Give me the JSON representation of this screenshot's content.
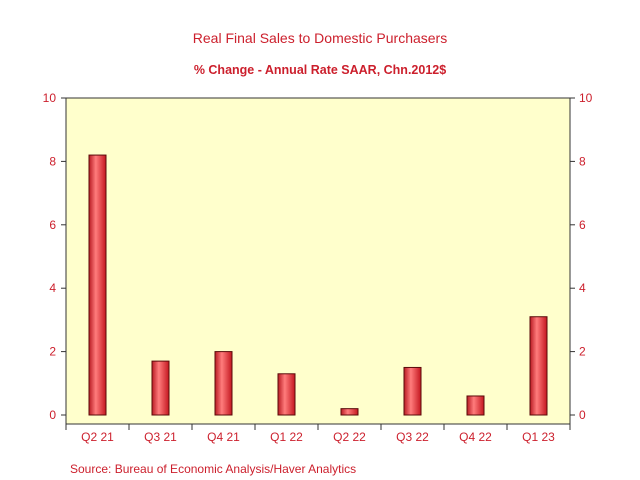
{
  "chart_data": {
    "type": "bar",
    "title": "Real Final Sales to Domestic Purchasers",
    "subtitle": "% Change - Annual Rate     SAAR, Chn.2012$",
    "categories": [
      "Q2 21",
      "Q3 21",
      "Q4 21",
      "Q1 22",
      "Q2 22",
      "Q3 22",
      "Q4 22",
      "Q1 23"
    ],
    "values": [
      8.2,
      1.7,
      2.0,
      1.3,
      0.2,
      1.5,
      0.6,
      3.1
    ],
    "ylim": [
      0,
      10
    ],
    "yticks": [
      0,
      2,
      4,
      6,
      8,
      10
    ],
    "y_axis_both_sides": true,
    "grid": false,
    "legend": "none",
    "source": "Source:  Bureau of Economic Analysis/Haver Analytics",
    "colors": {
      "bar_fill": "#e8262e",
      "bar_highlight": "#ff8a8a",
      "bar_stroke": "#5a0a0a",
      "plot_background": "#ffffcc",
      "text": "#cc1f2c",
      "axis": "#333333"
    }
  }
}
